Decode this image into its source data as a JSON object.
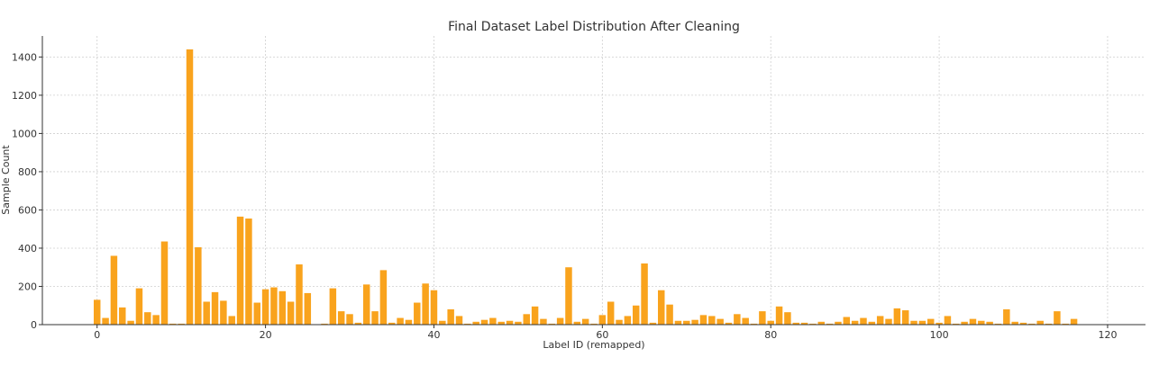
{
  "colors": {
    "bar": "#f9a31d",
    "grid": "#cfcfcf",
    "axis": "#333333",
    "text": "#333333"
  },
  "chart_data": {
    "type": "bar",
    "title": "Final Dataset Label Distribution After Cleaning",
    "xlabel": "Label ID (remapped)",
    "ylabel": "Sample Count",
    "xlim": [
      -6.5,
      124.5
    ],
    "ylim": [
      0,
      1510
    ],
    "xticks": [
      0,
      20,
      40,
      60,
      80,
      100,
      120
    ],
    "yticks": [
      0,
      200,
      400,
      600,
      800,
      1000,
      1200,
      1400
    ],
    "grid": true,
    "x": [
      0,
      1,
      2,
      3,
      4,
      5,
      6,
      7,
      8,
      9,
      10,
      11,
      12,
      13,
      14,
      15,
      16,
      17,
      18,
      19,
      20,
      21,
      22,
      23,
      24,
      25,
      26,
      27,
      28,
      29,
      30,
      31,
      32,
      33,
      34,
      35,
      36,
      37,
      38,
      39,
      40,
      41,
      42,
      43,
      44,
      45,
      46,
      47,
      48,
      49,
      50,
      51,
      52,
      53,
      54,
      55,
      56,
      57,
      58,
      59,
      60,
      61,
      62,
      63,
      64,
      65,
      66,
      67,
      68,
      69,
      70,
      71,
      72,
      73,
      74,
      75,
      76,
      77,
      78,
      79,
      80,
      81,
      82,
      83,
      84,
      85,
      86,
      87,
      88,
      89,
      90,
      91,
      92,
      93,
      94,
      95,
      96,
      97,
      98,
      99,
      100,
      101,
      102,
      103,
      104,
      105,
      106,
      107,
      108,
      109,
      110,
      111,
      112,
      113,
      114,
      115,
      116,
      117,
      118,
      119,
      120
    ],
    "values": [
      130,
      35,
      360,
      90,
      20,
      190,
      65,
      50,
      435,
      5,
      5,
      1440,
      405,
      120,
      170,
      125,
      45,
      565,
      555,
      115,
      185,
      195,
      175,
      120,
      315,
      165,
      0,
      5,
      190,
      70,
      55,
      10,
      210,
      70,
      285,
      10,
      35,
      25,
      115,
      215,
      180,
      20,
      80,
      45,
      5,
      15,
      25,
      35,
      15,
      20,
      15,
      55,
      95,
      30,
      5,
      35,
      300,
      15,
      30,
      5,
      50,
      120,
      25,
      45,
      100,
      320,
      10,
      180,
      105,
      20,
      20,
      25,
      50,
      45,
      30,
      10,
      55,
      35,
      5,
      70,
      20,
      95,
      65,
      10,
      10,
      5,
      15,
      5,
      15,
      40,
      20,
      35,
      15,
      45,
      30,
      85,
      75,
      20,
      20,
      30,
      10,
      45,
      5,
      15,
      30,
      20,
      15,
      5,
      80,
      15,
      10,
      5,
      20,
      5,
      70,
      5,
      30,
      0,
      0,
      0,
      0
    ]
  }
}
